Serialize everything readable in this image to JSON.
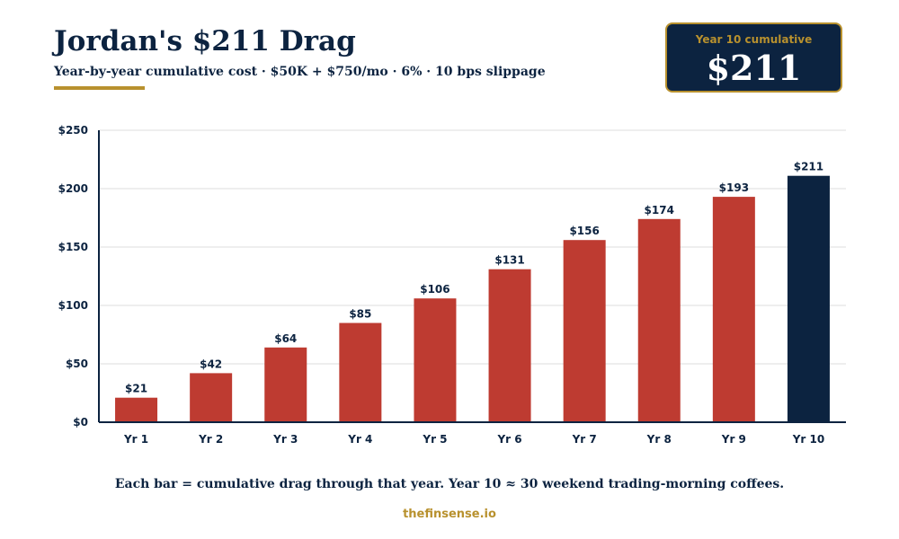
{
  "header": {
    "title": "Jordan's $211 Drag",
    "subtitle": "Year-by-year cumulative cost · $50K + $750/mo · 6% · 10 bps slippage"
  },
  "kpi": {
    "label": "Year 10 cumulative",
    "value": "$211"
  },
  "chart_data": {
    "type": "bar",
    "title": "Jordan's $211 Drag",
    "subtitle": "Year-by-year cumulative cost · $50K + $750/mo · 6% · 10 bps slippage",
    "xlabel": "",
    "ylabel": "",
    "categories": [
      "Yr 1",
      "Yr 2",
      "Yr 3",
      "Yr 4",
      "Yr 5",
      "Yr 6",
      "Yr 7",
      "Yr 8",
      "Yr 9",
      "Yr 10"
    ],
    "values": [
      21,
      42,
      64,
      85,
      106,
      131,
      156,
      174,
      193,
      211
    ],
    "data_labels": [
      "$21",
      "$42",
      "$64",
      "$85",
      "$106",
      "$131",
      "$156",
      "$174",
      "$193",
      "$211"
    ],
    "ylim": [
      0,
      250
    ],
    "yticks": [
      0,
      50,
      100,
      150,
      200,
      250
    ],
    "ytick_labels": [
      "$0",
      "$50",
      "$100",
      "$150",
      "$200",
      "$250"
    ],
    "grid": true,
    "legend": "none",
    "highlight_index": 9
  },
  "colors": {
    "bar": "#be3b31",
    "highlight_bar": "#0c2340",
    "accent": "#b8912e",
    "text": "#0c2340",
    "grid": "#dddddd"
  },
  "footer": {
    "note": "Each bar = cumulative drag through that year. Year 10 ≈ 30 weekend trading-morning coffees.",
    "brand": "thefinsense.io"
  }
}
